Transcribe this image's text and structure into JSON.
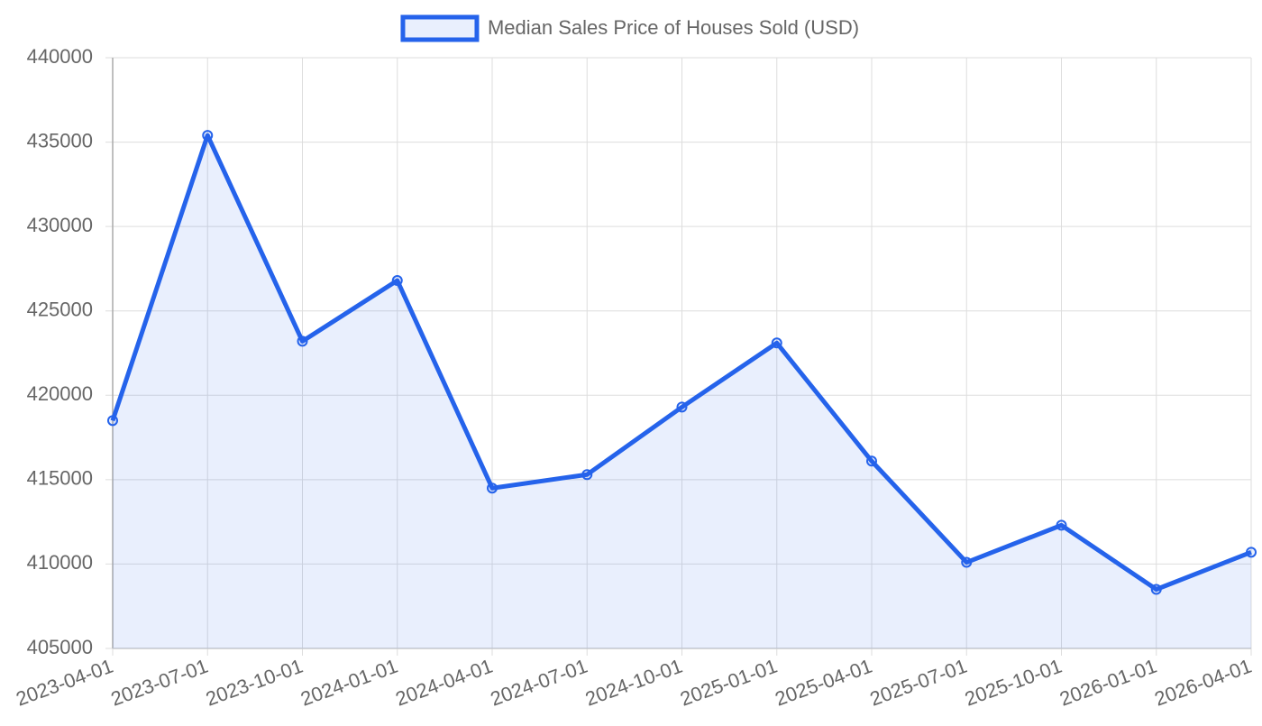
{
  "chart_data": {
    "type": "line",
    "x": [
      "2023-04-01",
      "2023-07-01",
      "2023-10-01",
      "2024-01-01",
      "2024-04-01",
      "2024-07-01",
      "2024-10-01",
      "2025-01-01",
      "2025-04-01",
      "2025-07-01",
      "2025-10-01",
      "2026-01-01",
      "2026-04-01"
    ],
    "series": [
      {
        "name": "Median Sales Price of Houses Sold (USD)",
        "color": "#2563eb",
        "values": [
          418500,
          435400,
          423200,
          426800,
          414500,
          415300,
          419300,
          423100,
          416100,
          410100,
          412300,
          408500,
          410700
        ]
      }
    ],
    "ylim": [
      405000,
      440000
    ],
    "yticks": [
      405000,
      410000,
      415000,
      420000,
      425000,
      430000,
      435000,
      440000
    ],
    "grid": true,
    "fill": true,
    "legend": "top"
  }
}
